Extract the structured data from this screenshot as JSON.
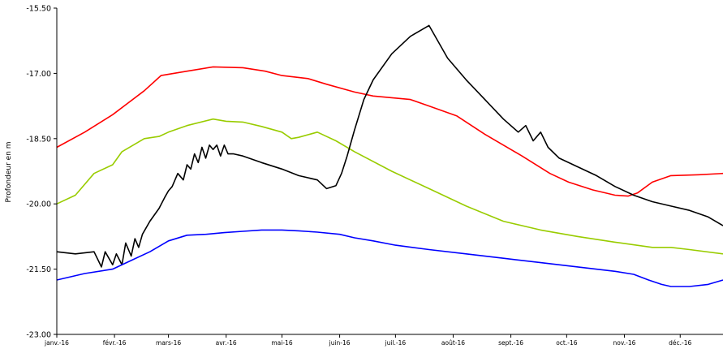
{
  "chart_data": {
    "type": "line",
    "title": "",
    "xlabel": "",
    "ylabel": "Profondeur en m",
    "ylim": [
      -23.0,
      -15.5
    ],
    "y_ticks": [
      "-15.50",
      "-17.00",
      "-18.50",
      "-20.00",
      "-21.50",
      "-23.00"
    ],
    "y_tick_values": [
      -15.5,
      -17.0,
      -18.5,
      -20.0,
      -21.5,
      -23.0
    ],
    "x_range_days": [
      0,
      358
    ],
    "x_ticks": [
      "janv.-16",
      "févr.-16",
      "mars-16",
      "avr.-16",
      "mai-16",
      "juin-16",
      "juil.-16",
      "août-16",
      "sept.-16",
      "oct.-16",
      "nov.-16",
      "déc.-16"
    ],
    "x_tick_days": [
      0,
      31,
      60,
      91,
      121,
      152,
      182,
      213,
      244,
      274,
      305,
      335
    ],
    "grid": false,
    "series": [
      {
        "color": "#ff0000",
        "x": [
          0,
          15,
          30,
          47,
          56,
          70,
          84,
          100,
          112,
          121,
          135,
          145,
          160,
          170,
          190,
          200,
          215,
          230,
          250,
          265,
          275,
          288,
          300,
          307,
          312,
          320,
          330,
          345,
          358
        ],
        "y": [
          -18.7,
          -18.35,
          -17.95,
          -17.4,
          -17.05,
          -16.95,
          -16.85,
          -16.87,
          -16.95,
          -17.05,
          -17.12,
          -17.25,
          -17.43,
          -17.52,
          -17.6,
          -17.75,
          -17.98,
          -18.4,
          -18.9,
          -19.3,
          -19.5,
          -19.68,
          -19.8,
          -19.82,
          -19.75,
          -19.5,
          -19.35,
          -19.33,
          -19.3
        ]
      },
      {
        "color": "#99cc00",
        "x": [
          0,
          10,
          20,
          30,
          35,
          47,
          55,
          60,
          70,
          84,
          91,
          100,
          110,
          121,
          126,
          130,
          140,
          150,
          160,
          180,
          200,
          220,
          240,
          260,
          280,
          300,
          320,
          330,
          340,
          358
        ],
        "y": [
          -20.0,
          -19.8,
          -19.3,
          -19.1,
          -18.8,
          -18.5,
          -18.45,
          -18.35,
          -18.2,
          -18.05,
          -18.1,
          -18.12,
          -18.22,
          -18.35,
          -18.5,
          -18.47,
          -18.35,
          -18.55,
          -18.8,
          -19.25,
          -19.65,
          -20.05,
          -20.4,
          -20.6,
          -20.75,
          -20.88,
          -21.0,
          -21.0,
          -21.05,
          -21.15
        ]
      },
      {
        "color": "#000000",
        "x": [
          0,
          10,
          20,
          24,
          26,
          30,
          32,
          35,
          37,
          40,
          42,
          44,
          46,
          50,
          55,
          58,
          60,
          62,
          65,
          68,
          70,
          72,
          74,
          76,
          78,
          80,
          82,
          84,
          86,
          88,
          90,
          92,
          95,
          100,
          110,
          121,
          130,
          140,
          145,
          150,
          153,
          156,
          160,
          165,
          170,
          180,
          190,
          200,
          210,
          220,
          230,
          240,
          248,
          252,
          256,
          260,
          264,
          270,
          280,
          290,
          300,
          310,
          320,
          330,
          340,
          350,
          358
        ],
        "y": [
          -21.1,
          -21.15,
          -21.1,
          -21.45,
          -21.1,
          -21.4,
          -21.15,
          -21.4,
          -20.9,
          -21.2,
          -20.8,
          -21.0,
          -20.7,
          -20.4,
          -20.1,
          -19.85,
          -19.7,
          -19.6,
          -19.3,
          -19.45,
          -19.1,
          -19.2,
          -18.85,
          -19.05,
          -18.7,
          -18.95,
          -18.65,
          -18.75,
          -18.65,
          -18.9,
          -18.65,
          -18.85,
          -18.85,
          -18.9,
          -19.05,
          -19.2,
          -19.35,
          -19.45,
          -19.65,
          -19.58,
          -19.3,
          -18.9,
          -18.3,
          -17.6,
          -17.15,
          -16.55,
          -16.15,
          -15.9,
          -16.65,
          -17.15,
          -17.6,
          -18.05,
          -18.35,
          -18.2,
          -18.55,
          -18.35,
          -18.7,
          -18.95,
          -19.15,
          -19.35,
          -19.6,
          -19.8,
          -19.95,
          -20.05,
          -20.15,
          -20.3,
          -20.5
        ]
      },
      {
        "color": "#0000ff",
        "x": [
          0,
          15,
          30,
          40,
          50,
          60,
          70,
          80,
          90,
          100,
          110,
          121,
          130,
          140,
          152,
          160,
          170,
          182,
          200,
          220,
          240,
          260,
          280,
          300,
          310,
          318,
          325,
          330,
          340,
          350,
          358
        ],
        "y": [
          -21.75,
          -21.6,
          -21.5,
          -21.3,
          -21.1,
          -20.85,
          -20.72,
          -20.7,
          -20.66,
          -20.63,
          -20.6,
          -20.6,
          -20.62,
          -20.65,
          -20.7,
          -20.78,
          -20.85,
          -20.95,
          -21.05,
          -21.15,
          -21.25,
          -21.35,
          -21.45,
          -21.55,
          -21.62,
          -21.75,
          -21.85,
          -21.9,
          -21.9,
          -21.85,
          -21.75
        ]
      }
    ]
  }
}
